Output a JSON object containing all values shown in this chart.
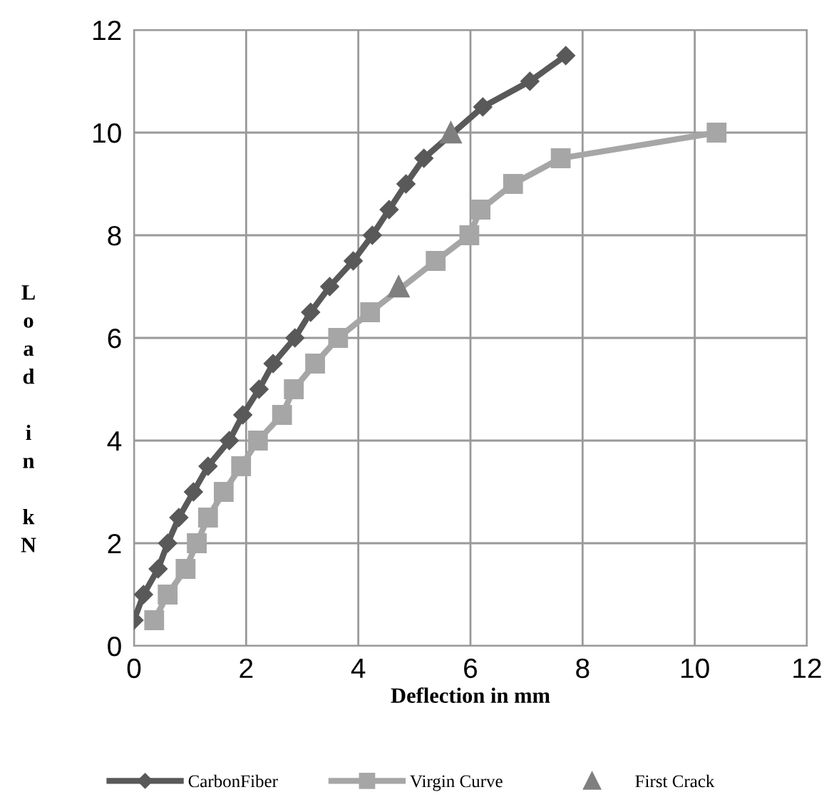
{
  "chart_data": {
    "type": "line",
    "xlabel": "Deflection in mm",
    "ylabel": "Load in kN",
    "xlim": [
      0,
      12
    ],
    "ylim": [
      0,
      12
    ],
    "xticks": [
      0,
      2,
      4,
      6,
      8,
      10,
      12
    ],
    "yticks": [
      0,
      2,
      4,
      6,
      8,
      10,
      12
    ],
    "grid": true,
    "legend": "bottom",
    "series": [
      {
        "name": "CarbonFiber",
        "color": "#595959",
        "marker": "diamond",
        "x": [
          0,
          0.17,
          0.43,
          0.6,
          0.8,
          1.06,
          1.32,
          1.7,
          1.94,
          2.23,
          2.48,
          2.87,
          3.15,
          3.49,
          3.91,
          4.25,
          4.55,
          4.85,
          5.17,
          6.22,
          7.06,
          7.7
        ],
        "values": [
          0.5,
          1,
          1.5,
          2,
          2.5,
          3,
          3.5,
          4,
          4.5,
          5,
          5.5,
          6,
          6.5,
          7,
          7.5,
          8,
          8.5,
          9,
          9.5,
          10.5,
          11,
          11.5
        ]
      },
      {
        "name": "Virgin Curve",
        "color": "#a6a6a6",
        "marker": "square",
        "x": [
          0.36,
          0.6,
          0.92,
          1.12,
          1.32,
          1.6,
          1.91,
          2.21,
          2.64,
          2.85,
          3.23,
          3.64,
          4.21,
          5.38,
          5.98,
          6.18,
          6.76,
          7.61,
          10.39
        ],
        "values": [
          0.5,
          1,
          1.5,
          2,
          2.5,
          3,
          3.5,
          4,
          4.5,
          5,
          5.5,
          6,
          6.5,
          7.5,
          8,
          8.5,
          9,
          9.5,
          10
        ]
      },
      {
        "name": "First Crack",
        "type": "scatter",
        "color": "#7f7f7f",
        "marker": "triangle",
        "x": [
          4.72,
          5.65
        ],
        "values": [
          7,
          10
        ]
      }
    ]
  }
}
